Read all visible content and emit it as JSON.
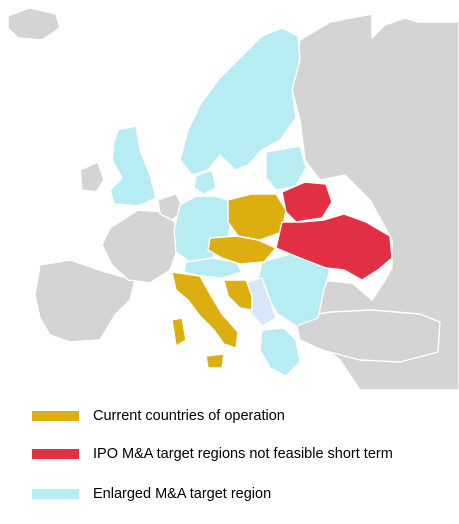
{
  "map": {
    "category_colors": {
      "other": "#d4d4d4",
      "current": "#ddae10",
      "ipo": "#e32f44",
      "enlarged": "#b8ecf3",
      "enlarged_light": "#d8e6fb"
    },
    "legend": [
      {
        "label": "Current countries of operation",
        "color": "#ddae10"
      },
      {
        "label": "IPO M&A target regions not feasible short term",
        "color": "#e32f44"
      },
      {
        "label": "Enlarged M&A target region",
        "color": "#b8ecf3"
      }
    ]
  }
}
